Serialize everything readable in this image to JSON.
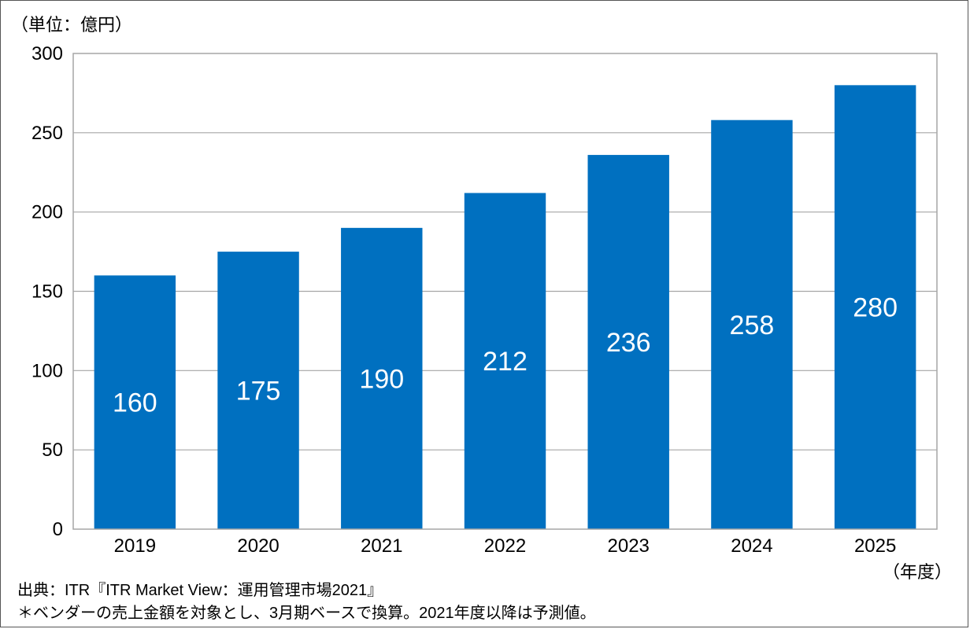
{
  "chart_data": {
    "type": "bar",
    "unit_label": "（単位：億円）",
    "x_unit_label": "（年度）",
    "categories": [
      "2019",
      "2020",
      "2021",
      "2022",
      "2023",
      "2024",
      "2025"
    ],
    "values": [
      160,
      175,
      190,
      212,
      236,
      258,
      280
    ],
    "ylim": [
      0,
      300
    ],
    "yticks": [
      0,
      50,
      100,
      150,
      200,
      250,
      300
    ],
    "grid": true,
    "bar_color": "#0070c0",
    "grid_color": "#a6a6a6",
    "data_label_color": "#ffffff",
    "source": "出典：ITR『ITR Market View：運用管理市場2021』",
    "note": "＊ベンダーの売上金額を対象とし、3月期ベースで換算。2021年度以降は予測値。"
  }
}
